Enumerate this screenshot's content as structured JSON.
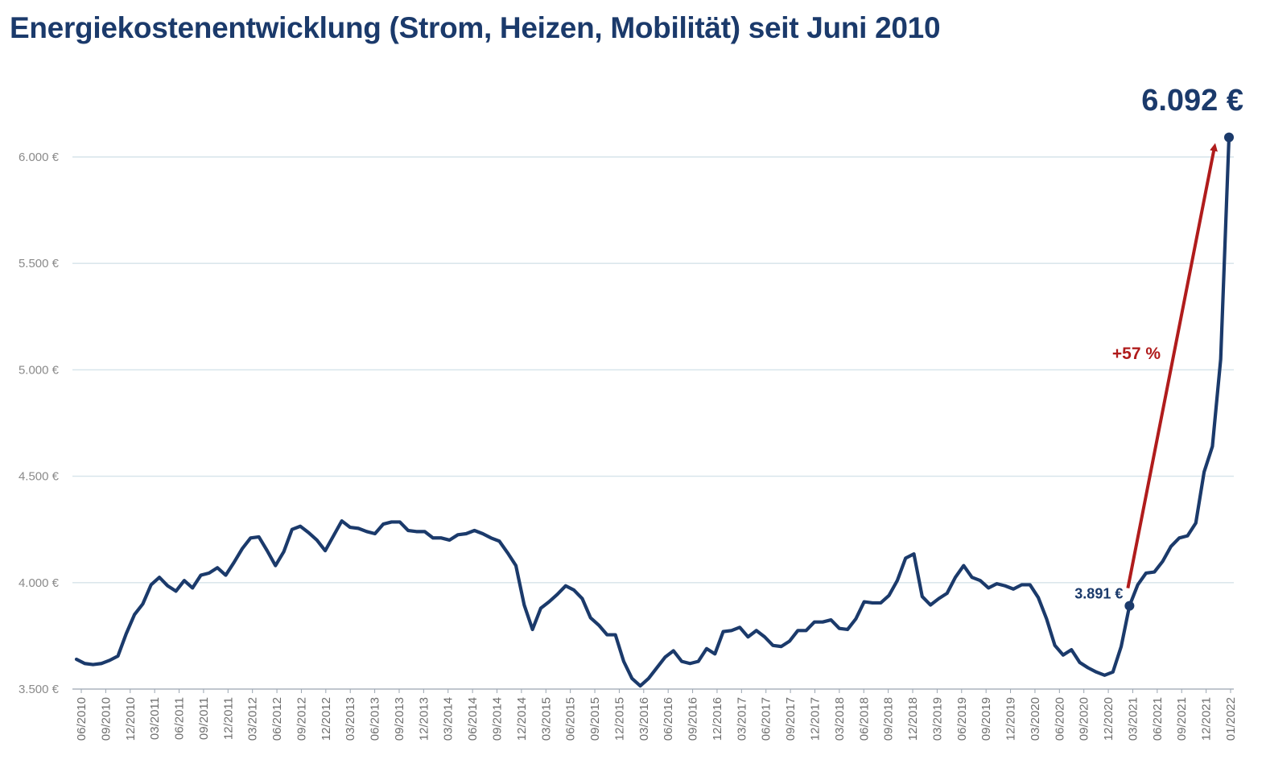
{
  "chart_data": {
    "type": "line",
    "title": "Energiekostenentwicklung (Strom, Heizen, Mobilität) seit Juni 2010",
    "ylim": [
      3500,
      6000
    ],
    "y_ticks": [
      3500,
      4000,
      4500,
      5000,
      5500,
      6000
    ],
    "y_tick_labels": [
      "3.500 €",
      "4.000 €",
      "4.500 €",
      "5.000 €",
      "5.500 €",
      "6.000 €"
    ],
    "x_tick_labels": [
      "06/2010",
      "09/2010",
      "12/2010",
      "03/2011",
      "06/2011",
      "09/2011",
      "12/2011",
      "03/2012",
      "06/2012",
      "09/2012",
      "12/2012",
      "03/2013",
      "06/2013",
      "09/2013",
      "12/2013",
      "03/2014",
      "06/2014",
      "09/2014",
      "12/2014",
      "03/2015",
      "06/2015",
      "09/2015",
      "12/2015",
      "03/2016",
      "06/2016",
      "09/2016",
      "12/2016",
      "03/2017",
      "06/2017",
      "09/2017",
      "12/2017",
      "03/2018",
      "06/2018",
      "09/2018",
      "12/2018",
      "03/2019",
      "06/2019",
      "09/2019",
      "12/2019",
      "03/2020",
      "06/2020",
      "09/2020",
      "12/2020",
      "03/2021",
      "06/2021",
      "09/2021",
      "12/2021",
      "01/2022"
    ],
    "grid": "horizontal",
    "line_color": "#1b3a6b",
    "arrow_color": "#b01c1c",
    "series": [
      {
        "values": [
          3640,
          3620,
          3615,
          3620,
          3635,
          3655,
          3760,
          3850,
          3900,
          3990,
          4025,
          3985,
          3960,
          4010,
          3975,
          4035,
          4045,
          4070,
          4035,
          4095,
          4160,
          4210,
          4215,
          4150,
          4080,
          4145,
          4250,
          4265,
          4235,
          4200,
          4150,
          4220,
          4290,
          4260,
          4255,
          4240,
          4230,
          4275,
          4285,
          4285,
          4245,
          4240,
          4240,
          4210,
          4210,
          4200,
          4225,
          4230,
          4245,
          4230,
          4210,
          4195,
          4140,
          4080,
          3895,
          3780,
          3880,
          3910,
          3945,
          3985,
          3965,
          3925,
          3835,
          3800,
          3755,
          3755,
          3630,
          3550,
          3515,
          3550,
          3600,
          3650,
          3680,
          3630,
          3620,
          3630,
          3690,
          3665,
          3770,
          3775,
          3790,
          3745,
          3775,
          3745,
          3705,
          3700,
          3725,
          3775,
          3775,
          3815,
          3815,
          3825,
          3785,
          3780,
          3830,
          3910,
          3905,
          3905,
          3940,
          4010,
          4115,
          4135,
          3935,
          3895,
          3925,
          3950,
          4025,
          4080,
          4025,
          4010,
          3975,
          3995,
          3985,
          3970,
          3990,
          3990,
          3930,
          3830,
          3705,
          3660,
          3685,
          3625,
          3600,
          3580,
          3565,
          3580,
          3700,
          3891,
          3990,
          4045,
          4050,
          4100,
          4170,
          4210,
          4220,
          4280,
          4520,
          4640,
          5050,
          6092
        ]
      }
    ],
    "annotations": {
      "start_label": "3.891 €",
      "start_value": 3891,
      "end_label": "6.092 €",
      "end_value": 6092,
      "change_label": "+57 %"
    }
  }
}
